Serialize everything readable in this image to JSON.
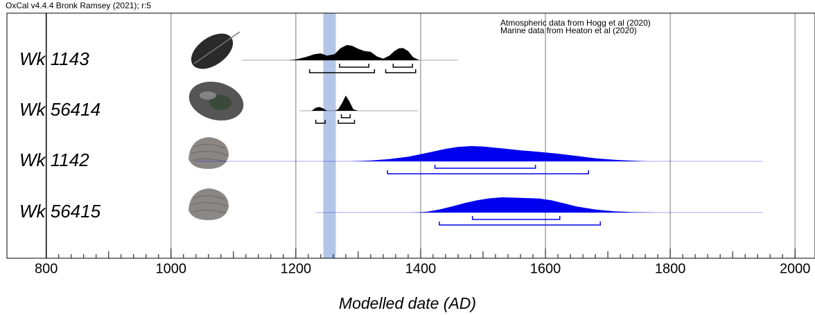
{
  "chart_data": {
    "type": "oxcal",
    "header": "OxCal v4.4.4 Bronk Ramsey (2021); r:5",
    "notes": [
      {
        "text": "Atmospheric data from Hogg et al (2020)",
        "color": "#000000"
      },
      {
        "text": "Marine data from Heaton et al (2020)",
        "color": "#0000ee"
      }
    ],
    "x_label": "Modelled date (AD)",
    "xlim": [
      737,
      2032
    ],
    "xticks": [
      800,
      1000,
      1200,
      1400,
      1600,
      1800,
      2000
    ],
    "grid": true,
    "band": {
      "range": [
        1244,
        1264
      ],
      "color": "#b4c6e7"
    },
    "series": [
      {
        "name": "Wk 1143",
        "color": "#000000",
        "extent": [
          1114,
          1459
        ],
        "x": [
          1187,
          1200,
          1215,
          1230,
          1240,
          1250,
          1262,
          1272,
          1282,
          1290,
          1300,
          1310,
          1320,
          1330,
          1340,
          1350,
          1358,
          1365,
          1372,
          1380,
          1388,
          1398
        ],
        "values": [
          0,
          0.05,
          0.2,
          0.4,
          0.45,
          0.3,
          0.4,
          0.8,
          1.0,
          0.95,
          0.75,
          0.6,
          0.55,
          0.25,
          0.1,
          0.3,
          0.6,
          0.78,
          0.8,
          0.6,
          0.2,
          0
        ],
        "range68": [
          [
            1270,
            1317
          ],
          [
            1356,
            1387
          ]
        ],
        "range95": [
          [
            1222,
            1326
          ],
          [
            1344,
            1392
          ]
        ]
      },
      {
        "name": "Wk 56414",
        "color": "#000000",
        "extent": [
          1206,
          1396
        ],
        "x": [
          1225,
          1232,
          1238,
          1244,
          1250,
          1262,
          1268,
          1274,
          1280,
          1286,
          1292,
          1300
        ],
        "values": [
          0,
          0.2,
          0.25,
          0.15,
          0,
          0,
          0.1,
          0.5,
          1.0,
          0.6,
          0.1,
          0
        ],
        "range68": [
          [
            1273,
            1287
          ]
        ],
        "range95": [
          [
            1232,
            1247
          ],
          [
            1268,
            1294
          ]
        ]
      },
      {
        "name": "Wk 1142",
        "color": "#0000ee",
        "extent": [
          1040,
          1948
        ],
        "x": [
          1287,
          1320,
          1350,
          1380,
          1410,
          1440,
          1460,
          1481,
          1500,
          1530,
          1560,
          1590,
          1620,
          1650,
          1680,
          1710,
          1740,
          1764
        ],
        "values": [
          0,
          0.05,
          0.15,
          0.3,
          0.55,
          0.82,
          0.95,
          1.0,
          0.97,
          0.85,
          0.72,
          0.62,
          0.5,
          0.35,
          0.2,
          0.1,
          0.04,
          0
        ],
        "range68": [
          [
            1423,
            1584
          ]
        ],
        "range95": [
          [
            1347,
            1669
          ]
        ]
      },
      {
        "name": "Wk 56415",
        "color": "#0000ee",
        "extent": [
          1231,
          1948
        ],
        "x": [
          1387,
          1410,
          1430,
          1450,
          1470,
          1490,
          1510,
          1531,
          1550,
          1570,
          1590,
          1610,
          1630,
          1650,
          1680,
          1710,
          1740,
          1781
        ],
        "values": [
          0,
          0.05,
          0.2,
          0.4,
          0.62,
          0.8,
          0.93,
          1.0,
          0.98,
          0.95,
          0.92,
          0.8,
          0.6,
          0.4,
          0.2,
          0.08,
          0.03,
          0
        ],
        "range68": [
          [
            1483,
            1623
          ]
        ],
        "range95": [
          [
            1430,
            1688
          ]
        ]
      }
    ]
  }
}
